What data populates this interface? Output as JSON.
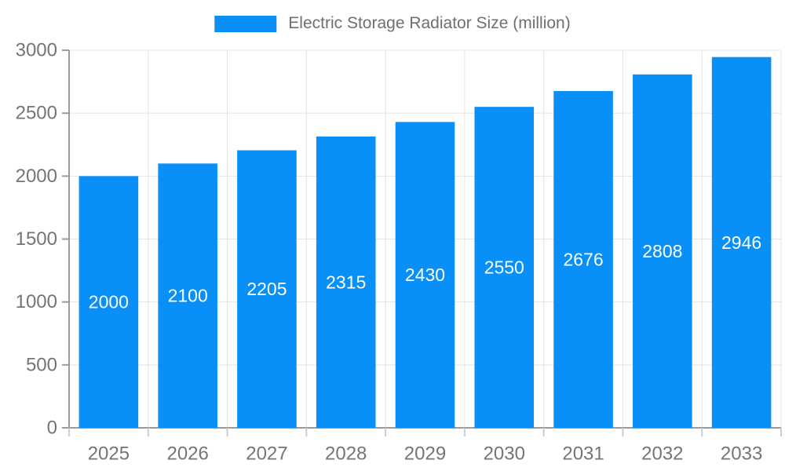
{
  "chart_data": {
    "type": "bar",
    "title": "",
    "legend_label": "Electric Storage Radiator Size (million)",
    "legend_position": "top",
    "categories": [
      "2025",
      "2026",
      "2027",
      "2028",
      "2029",
      "2030",
      "2031",
      "2032",
      "2033"
    ],
    "series": [
      {
        "name": "Electric Storage Radiator Size (million)",
        "values": [
          2000,
          2100,
          2205,
          2315,
          2430,
          2550,
          2676,
          2808,
          2946
        ]
      }
    ],
    "xlabel": "",
    "ylabel": "",
    "ylim": [
      0,
      3000
    ],
    "yticks": [
      0,
      500,
      1000,
      1500,
      2000,
      2500,
      3000
    ],
    "grid": true,
    "value_labels_inside_bars": true
  },
  "colors": {
    "bar": "#0890f8",
    "grid": "#e4e4e4",
    "axis": "#9a9a9a",
    "x_tick": "#cccccc",
    "tick_label": "#757575",
    "value_label": "#ffffff",
    "legend_text": "#6f6f6f",
    "background": "#ffffff"
  }
}
